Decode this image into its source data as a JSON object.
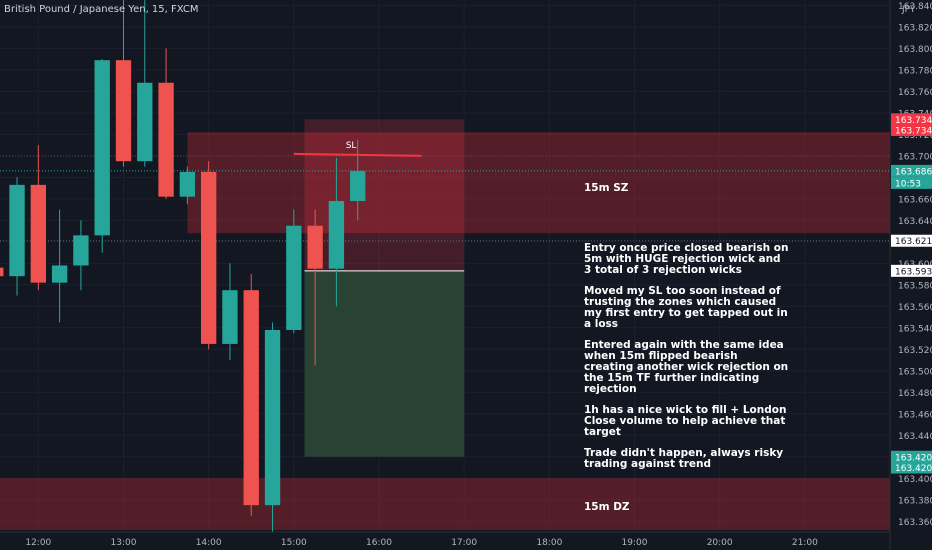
{
  "header": {
    "symbol": "British Pound / Japanese Yen, 15, FXCM"
  },
  "colors": {
    "background": "#131722",
    "bull": "#26a69a",
    "bear": "#ef5350",
    "zone": "#8b2530",
    "profit": "#2d4a36",
    "stop_line": "#f23645",
    "badge_red": "#f23645",
    "badge_green": "#26a69a"
  },
  "chart_data": {
    "type": "candlestick",
    "currency": "JPY",
    "ylim": [
      163.35,
      163.845
    ],
    "yticks": [
      163.36,
      163.38,
      163.4,
      163.42,
      163.44,
      163.46,
      163.48,
      163.5,
      163.52,
      163.54,
      163.56,
      163.58,
      163.6,
      163.62,
      163.64,
      163.66,
      163.68,
      163.7,
      163.72,
      163.74,
      163.76,
      163.78,
      163.8,
      163.82,
      163.84
    ],
    "xticks": [
      {
        "t": 12.0,
        "label": "12:00"
      },
      {
        "t": 13.0,
        "label": "13:00"
      },
      {
        "t": 14.0,
        "label": "14:00"
      },
      {
        "t": 15.0,
        "label": "15:00"
      },
      {
        "t": 16.0,
        "label": "16:00"
      },
      {
        "t": 17.0,
        "label": "17:00"
      },
      {
        "t": 18.0,
        "label": "18:00"
      },
      {
        "t": 19.0,
        "label": "19:00"
      },
      {
        "t": 20.0,
        "label": "20:00"
      },
      {
        "t": 21.0,
        "label": "21:00"
      }
    ],
    "xlim": [
      11.55,
      22.0
    ],
    "candles": [
      {
        "t": 11.5,
        "o": 163.596,
        "h": 163.61,
        "l": 163.586,
        "c": 163.588
      },
      {
        "t": 11.75,
        "o": 163.588,
        "h": 163.68,
        "l": 163.57,
        "c": 163.673
      },
      {
        "t": 12.0,
        "o": 163.673,
        "h": 163.71,
        "l": 163.575,
        "c": 163.582
      },
      {
        "t": 12.25,
        "o": 163.582,
        "h": 163.65,
        "l": 163.545,
        "c": 163.598
      },
      {
        "t": 12.5,
        "o": 163.598,
        "h": 163.64,
        "l": 163.575,
        "c": 163.626
      },
      {
        "t": 12.75,
        "o": 163.626,
        "h": 163.79,
        "l": 163.61,
        "c": 163.789
      },
      {
        "t": 13.0,
        "o": 163.789,
        "h": 163.845,
        "l": 163.69,
        "c": 163.695
      },
      {
        "t": 13.25,
        "o": 163.695,
        "h": 163.845,
        "l": 163.69,
        "c": 163.768
      },
      {
        "t": 13.5,
        "o": 163.768,
        "h": 163.8,
        "l": 163.66,
        "c": 163.662
      },
      {
        "t": 13.75,
        "o": 163.662,
        "h": 163.69,
        "l": 163.655,
        "c": 163.685
      },
      {
        "t": 14.0,
        "o": 163.685,
        "h": 163.695,
        "l": 163.52,
        "c": 163.525
      },
      {
        "t": 14.25,
        "o": 163.525,
        "h": 163.6,
        "l": 163.51,
        "c": 163.575
      },
      {
        "t": 14.5,
        "o": 163.575,
        "h": 163.59,
        "l": 163.365,
        "c": 163.375
      },
      {
        "t": 14.75,
        "o": 163.375,
        "h": 163.545,
        "l": 163.35,
        "c": 163.538
      },
      {
        "t": 15.0,
        "o": 163.538,
        "h": 163.65,
        "l": 163.535,
        "c": 163.635
      },
      {
        "t": 15.25,
        "o": 163.635,
        "h": 163.65,
        "l": 163.505,
        "c": 163.595
      },
      {
        "t": 15.5,
        "o": 163.595,
        "h": 163.698,
        "l": 163.56,
        "c": 163.658
      },
      {
        "t": 15.75,
        "o": 163.658,
        "h": 163.715,
        "l": 163.64,
        "c": 163.686
      }
    ],
    "zones": [
      {
        "label": "15m SZ",
        "y1": 163.628,
        "y2": 163.722,
        "t1": 13.75,
        "t2": 22.0
      },
      {
        "label": "15m DZ",
        "y1": 163.352,
        "y2": 163.4,
        "t1": 11.55,
        "t2": 22.0
      }
    ],
    "position": {
      "t1": 15.25,
      "t2": 17.0,
      "stop_top": 163.734,
      "entry": 163.593,
      "target": 163.42
    },
    "stop_label": {
      "text": "SL",
      "price": 163.7,
      "t1": 15.0,
      "t2": 16.5
    },
    "price_badges": [
      {
        "price": 163.734,
        "text": "163.734",
        "color": "red"
      },
      {
        "price": 163.724,
        "text": "163.734",
        "color": "red"
      },
      {
        "price": 163.686,
        "text": "163.686",
        "color": "green"
      },
      {
        "price": 163.621,
        "text": "163.621",
        "color": "white"
      },
      {
        "price": 163.593,
        "text": "163.593",
        "color": "white"
      },
      {
        "price": 163.42,
        "text": "163.420",
        "color": "green"
      },
      {
        "price": 163.41,
        "text": "163.420",
        "color": "green"
      }
    ],
    "countdown": "10:53"
  },
  "annotations": [
    "Entry once price closed bearish on 5m with HUGE rejection wick and 3 total of 3 rejection wicks",
    "Moved my SL too soon instead of trusting the zones which caused my first entry to get tapped out in a loss",
    "Entered again with the same idea when 15m flipped bearish creating another wick rejection on the 15m TF further indicating rejection",
    "1h has a nice wick to fill + London Close volume to help achieve that target",
    "Trade didn't happen, always risky trading against trend"
  ]
}
